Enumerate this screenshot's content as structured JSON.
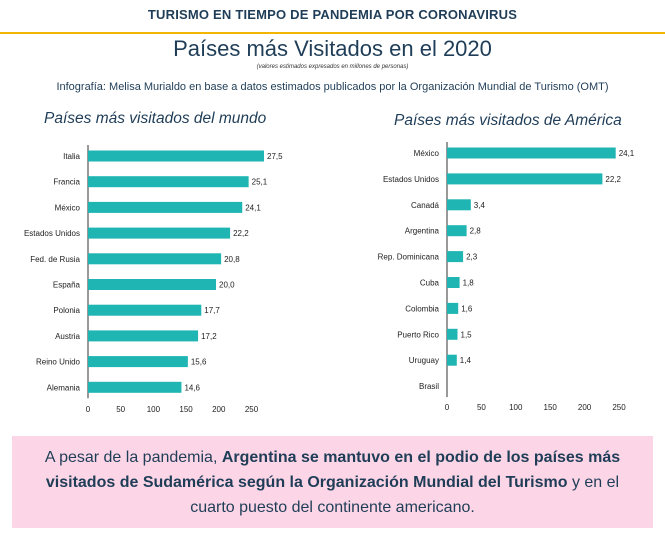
{
  "header": {
    "banner": "TURISMO EN TIEMPO DE PANDEMIA POR CORONAVIRUS",
    "title": "Países más Visitados en el 2020",
    "note": "(valores estimados expresados en millones de personas)",
    "credit": "Infografía: Melisa Murialdo en base a datos estimados publicados por la Organización Mundial de Turismo (OMT)"
  },
  "chart_data": [
    {
      "type": "bar",
      "orientation": "horizontal",
      "title": "Países más visitados del mundo",
      "categories": [
        "Italia",
        "Francia",
        "México",
        "Estados Unidos",
        "Fed. de Rusia",
        "España",
        "Polonia",
        "Austria",
        "Reino Unido",
        "Alemania"
      ],
      "values": [
        27.5,
        25.1,
        24.1,
        22.2,
        20.8,
        20.0,
        17.7,
        17.2,
        15.6,
        14.6
      ],
      "value_labels": [
        "27,5",
        "25,1",
        "24,1",
        "22,2",
        "20,8",
        "20,0",
        "17,7",
        "17,2",
        "15,6",
        "14,6"
      ],
      "xticks": [
        "0",
        "50",
        "100",
        "150",
        "200",
        "250"
      ],
      "grid": false
    },
    {
      "type": "bar",
      "orientation": "horizontal",
      "title": "Países más visitados de América",
      "categories": [
        "México",
        "Estados Unidos",
        "Canadá",
        "Argentina",
        "Rep. Dominicana",
        "Cuba",
        "Colombia",
        "Puerto Rico",
        "Uruguay",
        "Brasil"
      ],
      "values": [
        24.1,
        22.2,
        3.4,
        2.8,
        2.3,
        1.8,
        1.6,
        1.5,
        1.4,
        null
      ],
      "value_labels": [
        "24,1",
        "22,2",
        "3,4",
        "2,8",
        "2,3",
        "1,8",
        "1,6",
        "1,5",
        "1,4",
        ""
      ],
      "xticks": [
        "0",
        "50",
        "100",
        "150",
        "200",
        "250"
      ],
      "grid": false
    }
  ],
  "callout": {
    "part1": "A pesar de la pandemia, ",
    "bold": "Argentina se mantuvo en el podio de los países más visitados de Sudamérica según la Organización Mundial del Turismo",
    "part2": " y en el cuarto puesto del continente americano."
  },
  "colors": {
    "bar": "#1fb5b3",
    "accent": "#f2b600",
    "title": "#1f3d57",
    "callout_bg": "#fcd6e7"
  }
}
